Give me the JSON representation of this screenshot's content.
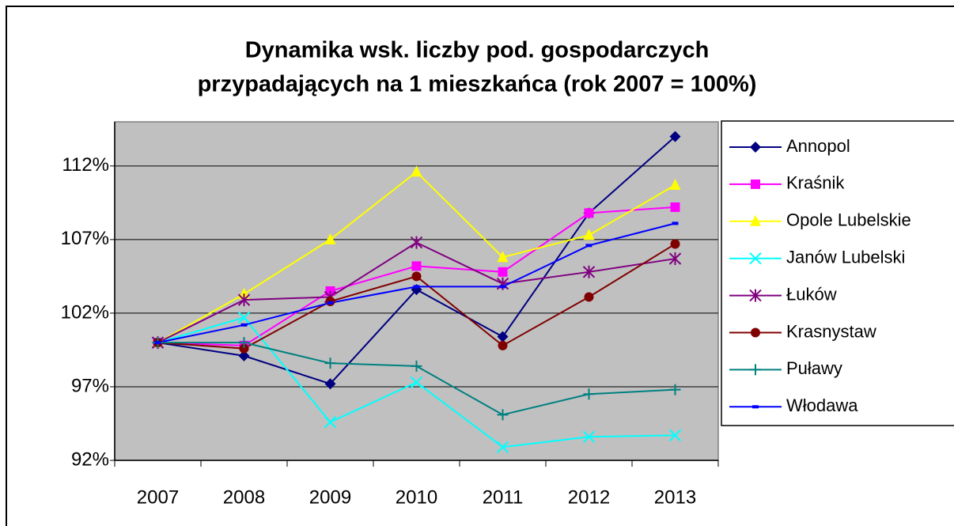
{
  "chart_data": {
    "type": "line",
    "title": [
      "Dynamika wsk. liczby pod. gospodarczych",
      "przypadających na 1 mieszkańca (rok 2007 = 100%)"
    ],
    "categories": [
      "2007",
      "2008",
      "2009",
      "2010",
      "2011",
      "2012",
      "2013"
    ],
    "ylim": [
      92,
      115
    ],
    "yticks": [
      {
        "value": 92,
        "label": "92%"
      },
      {
        "value": 97,
        "label": "97%"
      },
      {
        "value": 102,
        "label": "102%"
      },
      {
        "value": 107,
        "label": "107%"
      },
      {
        "value": 112,
        "label": "112%"
      }
    ],
    "grid": true,
    "legend": "right",
    "series": [
      {
        "name": "Annopol",
        "color": "#000080",
        "marker": "diamond",
        "values": [
          100,
          99.1,
          97.2,
          103.6,
          100.4,
          108.8,
          114.0
        ]
      },
      {
        "name": "Kraśnik",
        "color": "#ff00ff",
        "marker": "square",
        "values": [
          100,
          99.8,
          103.5,
          105.2,
          104.8,
          108.8,
          109.2
        ]
      },
      {
        "name": "Opole Lubelskie",
        "color": "#ffff00",
        "marker": "triangle",
        "values": [
          100,
          103.3,
          107.0,
          111.6,
          105.8,
          107.3,
          110.7
        ]
      },
      {
        "name": "Janów Lubelski",
        "color": "#00ffff",
        "marker": "x",
        "values": [
          100,
          101.7,
          94.6,
          97.3,
          92.9,
          93.6,
          93.7
        ]
      },
      {
        "name": "Łuków",
        "color": "#800080",
        "marker": "star",
        "values": [
          100,
          102.9,
          103.1,
          106.8,
          104.0,
          104.8,
          105.7
        ]
      },
      {
        "name": "Krasnystaw",
        "color": "#800000",
        "marker": "circle",
        "values": [
          100,
          99.6,
          102.8,
          104.5,
          99.8,
          103.1,
          106.7
        ]
      },
      {
        "name": "Puławy",
        "color": "#008080",
        "marker": "plus",
        "values": [
          100,
          100,
          98.6,
          98.4,
          95.1,
          96.5,
          96.8
        ]
      },
      {
        "name": "Włodawa",
        "color": "#0000ff",
        "marker": "dash",
        "values": [
          100,
          101.2,
          102.7,
          103.8,
          103.8,
          106.6,
          108.1
        ]
      }
    ]
  }
}
